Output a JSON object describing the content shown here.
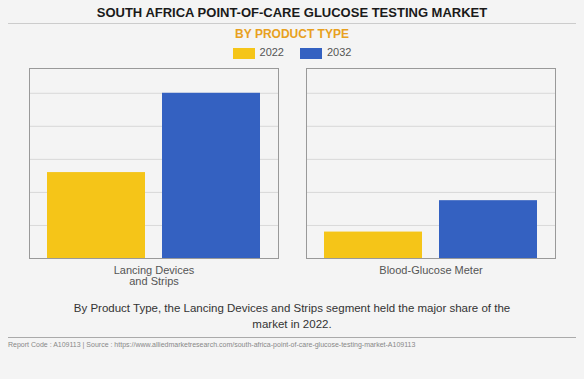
{
  "chart_data": {
    "type": "bar",
    "title": "SOUTH AFRICA POINT-OF-CARE GLUCOSE TESTING MARKET",
    "subtitle": "BY PRODUCT TYPE",
    "categories": [
      "Lancing Devices\nand Strips",
      "Blood-Glucose Meter"
    ],
    "series": [
      {
        "name": "2022",
        "color": "#F5C518",
        "values": [
          52,
          16
        ]
      },
      {
        "name": "2032",
        "color": "#3461C1",
        "values": [
          100,
          35
        ]
      }
    ],
    "ylim": [
      0,
      115
    ],
    "yticks": [
      0,
      20,
      40,
      60,
      80,
      100
    ],
    "grid": true,
    "tick_labels": "x",
    "legend": "top",
    "annotation": "By Product Type, the Lancing Devices and Strips segment held the major share of the\nmarket in 2022.",
    "footer": "Report Code : A109113  |  Source : https://www.alliedmarketresearch.com/south-africa-point-of-care-glucose-testing-market-A109113"
  }
}
